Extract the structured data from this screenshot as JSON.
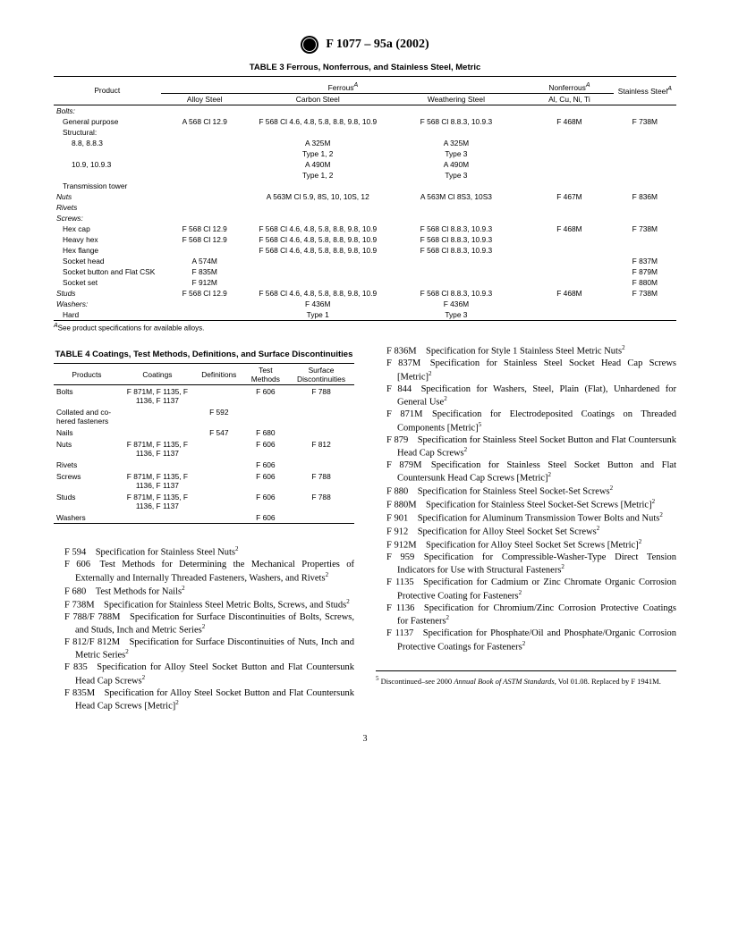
{
  "standard_no": "F 1077 – 95a  (2002)",
  "t3": {
    "caption": "TABLE 3  Ferrous, Nonferrous, and Stainless Steel, Metric",
    "headers": {
      "product": "Product",
      "ferrous": "Ferrous",
      "ferrous_sup": "A",
      "nonferrous": "Nonferrous",
      "nonferrous_sup": "A",
      "stainless": "Stainless Steel",
      "stainless_sup": "A",
      "alloy": "Alloy Steel",
      "carbon": "Carbon Steel",
      "weathering": "Weathering Steel",
      "alcu": "Al, Cu, Ni, Ti"
    },
    "rows": [
      {
        "p": "Bolts:",
        "it": true
      },
      {
        "p": "General purpose",
        "i": 1,
        "a": "A 568 Cl 12.9",
        "c": "F 568 Cl 4.6, 4.8, 5.8, 8.8, 9.8, 10.9",
        "w": "F 568 Cl 8.8.3, 10.9.3",
        "n": "F 468M",
        "s": "F 738M"
      },
      {
        "p": "Structural:",
        "i": 1
      },
      {
        "p": "8.8, 8.8.3",
        "i": 2,
        "c": "A 325M",
        "w": "A 325M"
      },
      {
        "p": "",
        "c": "Type 1, 2",
        "w": "Type 3"
      },
      {
        "p": "10.9, 10.9.3",
        "i": 2,
        "c": "A 490M",
        "w": "A 490M"
      },
      {
        "p": "",
        "c": "Type 1, 2",
        "w": "Type 3"
      },
      {
        "p": "Transmission tower",
        "i": 1
      },
      {
        "p": "Nuts",
        "it": true,
        "c": "A 563M Cl 5.9, 8S, 10, 10S, 12",
        "w": "A 563M Cl 8S3, 10S3",
        "n": "F 467M",
        "s": "F 836M"
      },
      {
        "p": "Rivets",
        "it": true
      },
      {
        "p": "Screws:",
        "it": true
      },
      {
        "p": "Hex cap",
        "i": 1,
        "a": "F 568 Cl 12.9",
        "c": "F 568 Cl 4.6, 4.8, 5.8, 8.8, 9.8, 10.9",
        "w": "F 568 Cl 8.8.3, 10.9.3",
        "n": "F 468M",
        "s": "F 738M"
      },
      {
        "p": "Heavy hex",
        "i": 1,
        "a": "F 568 Cl 12.9",
        "c": "F 568 Cl 4.6, 4.8, 5.8, 8.8, 9.8, 10.9",
        "w": "F 568 Cl 8.8.3, 10.9.3"
      },
      {
        "p": "Hex flange",
        "i": 1,
        "c": "F 568 Cl 4.6, 4.8, 5.8, 8.8, 9.8, 10.9",
        "w": "F 568 Cl 8.8.3, 10.9.3"
      },
      {
        "p": "Socket head",
        "i": 1,
        "a": "A 574M",
        "s": "F 837M"
      },
      {
        "p": "Socket button and Flat CSK",
        "i": 1,
        "a": "F 835M",
        "s": "F 879M"
      },
      {
        "p": "Socket set",
        "i": 1,
        "a": "F 912M",
        "s": "F 880M"
      },
      {
        "p": "Studs",
        "it": true,
        "a": "F 568 Cl 12.9",
        "c": "F 568 Cl 4.6, 4.8, 5.8, 8.8, 9.8, 10.9",
        "w": "F 568 Cl 8.8.3, 10.9.3",
        "n": "F 468M",
        "s": "F 738M"
      },
      {
        "p": "Washers:",
        "it": true,
        "c": "F 436M",
        "w": "F 436M"
      },
      {
        "p": "Hard",
        "i": 1,
        "c": "Type 1",
        "w": "Type 3"
      }
    ],
    "footnote": "See product specifications for available alloys.",
    "footnote_sup": "A"
  },
  "t4": {
    "caption": "TABLE 4  Coatings, Test Methods, Definitions, and Surface Discontinuities",
    "headers": {
      "products": "Products",
      "coatings": "Coatings",
      "definitions": "Definitions",
      "test": "Test Methods",
      "surface": "Surface Discontinuities"
    },
    "rows": [
      {
        "p": "Bolts",
        "c": "F 871M, F 1135, F 1136, F 1137",
        "t": "F 606",
        "s": "F 788"
      },
      {
        "p": "Collated and co-hered fasteners",
        "d": "F 592"
      },
      {
        "p": "Nails",
        "d": "F 547",
        "t": "F 680"
      },
      {
        "p": "Nuts",
        "c": "F 871M, F 1135, F 1136, F 1137",
        "t": "F 606",
        "s": "F 812"
      },
      {
        "p": "Rivets",
        "t": "F 606"
      },
      {
        "p": "Screws",
        "c": "F 871M, F 1135, F 1136, F 1137",
        "t": "F 606",
        "s": "F 788"
      },
      {
        "p": "Studs",
        "c": "F 871M, F 1135, F 1136, F 1137",
        "t": "F 606",
        "s": "F 788"
      },
      {
        "p": "Washers",
        "t": "F 606"
      }
    ]
  },
  "specs_left": [
    {
      "no": "F 594",
      "txt": "Specification for Stainless Steel Nuts",
      "sup": "2"
    },
    {
      "no": "F 606",
      "txt": "Test Methods for Determining the Mechanical Properties of Externally and Internally Threaded Fasteners, Washers, and Rivets",
      "sup": "2"
    },
    {
      "no": "F 680",
      "txt": "Test Methods for Nails",
      "sup": "2"
    },
    {
      "no": "F 738M",
      "txt": "Specification for Stainless Steel Metric Bolts, Screws, and Studs",
      "sup": "2"
    },
    {
      "no": "F 788/F 788M",
      "txt": "Specification for Surface Discontinuities of Bolts, Screws, and Studs, Inch and Metric Series",
      "sup": "2"
    },
    {
      "no": "F 812/F 812M",
      "txt": "Specification for Surface Discontinuities of Nuts, Inch and Metric Series",
      "sup": "2"
    },
    {
      "no": "F 835",
      "txt": "Specification for Alloy Steel Socket Button and Flat Countersunk Head Cap Screws",
      "sup": "2"
    },
    {
      "no": "F 835M",
      "txt": "Specification for Alloy Steel Socket Button and Flat Countersunk Head Cap Screws [Metric]",
      "sup": "2"
    }
  ],
  "specs_right": [
    {
      "no": "F 836M",
      "txt": "Specification for Style 1 Stainless Steel Metric Nuts",
      "sup": "2"
    },
    {
      "no": "F 837M",
      "txt": "Specification for Stainless Steel Socket Head Cap Screws [Metric]",
      "sup": "2"
    },
    {
      "no": "F 844",
      "txt": "Specification for Washers, Steel, Plain (Flat), Unhardened for General Use",
      "sup": "2"
    },
    {
      "no": "F 871M",
      "txt": "Specification for Electrodeposited Coatings on Threaded Components [Metric]",
      "sup": "5"
    },
    {
      "no": "F 879",
      "txt": "Specification for Stainless Steel Socket Button and Flat Countersunk Head Cap Screws",
      "sup": "2"
    },
    {
      "no": "F 879M",
      "txt": "Specification for Stainless Steel Socket Button and Flat Countersunk Head Cap Screws [Metric]",
      "sup": "2"
    },
    {
      "no": "F 880",
      "txt": "Specification for Stainless Steel Socket-Set Screws",
      "sup": "2"
    },
    {
      "no": "F 880M",
      "txt": "Specification for Stainless Steel Socket-Set Screws [Metric]",
      "sup": "2"
    },
    {
      "no": "F 901",
      "txt": "Specification for Aluminum Transmission Tower Bolts and Nuts",
      "sup": "2"
    },
    {
      "no": "F 912",
      "txt": "Specification for Alloy Steel Socket Set Screws",
      "sup": "2"
    },
    {
      "no": "F 912M",
      "txt": "Specification for Alloy Steel Socket Set Screws [Metric]",
      "sup": "2"
    },
    {
      "no": "F 959",
      "txt": "Specification for Compressible-Washer-Type Direct Tension Indicators for Use with Structural Fasteners",
      "sup": "2"
    },
    {
      "no": "F 1135",
      "txt": "Specification for Cadmium or Zinc Chromate Organic Corrosion Protective Coating for Fasteners",
      "sup": "2"
    },
    {
      "no": "F 1136",
      "txt": "Specification for Chromium/Zinc Corrosion Protective Coatings for Fasteners",
      "sup": "2"
    },
    {
      "no": "F 1137",
      "txt": "Specification for Phosphate/Oil and Phosphate/Organic Corrosion Protective Coatings for Fasteners",
      "sup": "2"
    }
  ],
  "footnote5_sup": "5",
  "footnote5_a": " Discontinued–see 2000 ",
  "footnote5_it": "Annual Book of ASTM Standards",
  "footnote5_b": ", Vol 01.08. Replaced by F 1941M.",
  "page_no": "3"
}
